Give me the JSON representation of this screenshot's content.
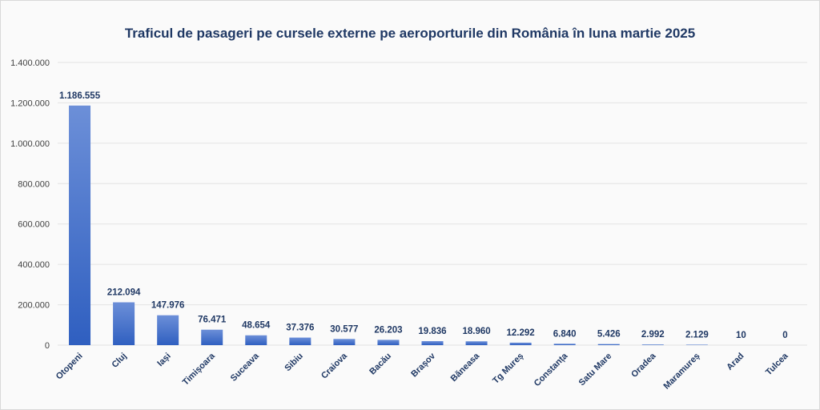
{
  "chart_data": {
    "type": "bar",
    "title": "Traficul de pasageri pe cursele externe pe aeroporturile din România în luna martie 2025",
    "xlabel": "",
    "ylabel": "",
    "ylim": [
      0,
      1400000
    ],
    "ytick_values": [
      0,
      200000,
      400000,
      600000,
      800000,
      1000000,
      1200000,
      1400000
    ],
    "ytick_labels": [
      "0",
      "200.000",
      "400.000",
      "600.000",
      "800.000",
      "1.000.000",
      "1.200.000",
      "1.400.000"
    ],
    "categories": [
      "Otopeni",
      "Cluj",
      "Iași",
      "Timișoara",
      "Suceava",
      "Sibiu",
      "Craiova",
      "Bacău",
      "Brașov",
      "Băneasa",
      "Tg Mureș",
      "Constanța",
      "Satu Mare",
      "Oradea",
      "Maramureș",
      "Arad",
      "Tulcea"
    ],
    "values": [
      1186555,
      212094,
      147976,
      76471,
      48654,
      37376,
      30577,
      26203,
      19836,
      18960,
      12292,
      6840,
      5426,
      2992,
      2129,
      10,
      0
    ],
    "value_labels": [
      "1.186.555",
      "212.094",
      "147.976",
      "76.471",
      "48.654",
      "37.376",
      "30.577",
      "26.203",
      "19.836",
      "18.960",
      "12.292",
      "6.840",
      "5.426",
      "2.992",
      "2.129",
      "10",
      "0"
    ],
    "grid": true,
    "legend": "none",
    "colors": {
      "bar_top": "#6c8fd8",
      "bar_bottom": "#2f5fc0",
      "grid": "#e3e3e3",
      "text": "#1f3864"
    }
  }
}
